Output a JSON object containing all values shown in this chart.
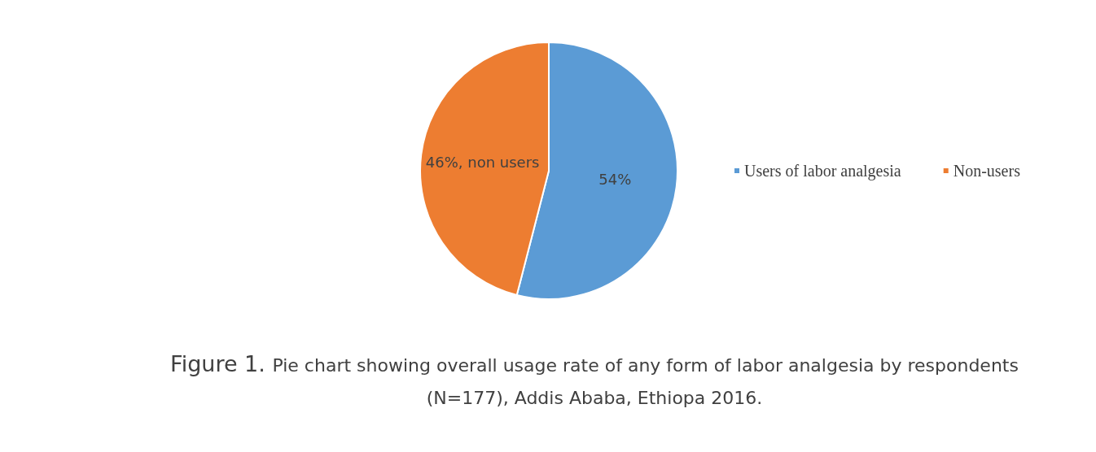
{
  "chart_data": {
    "type": "pie",
    "categories": [
      "Users of labor analgesia",
      "Non-users"
    ],
    "values": [
      54,
      46
    ],
    "colors": [
      "#5b9bd5",
      "#ed7d31"
    ],
    "value_labels": [
      "54%",
      "46%, non users"
    ],
    "legend": "right",
    "annotations": [
      "Figure 1.",
      "Pie chart showing overall usage rate of any form of labor analgesia  by respondents (N=177), Addis Ababa, Ethiopa 2016."
    ]
  }
}
